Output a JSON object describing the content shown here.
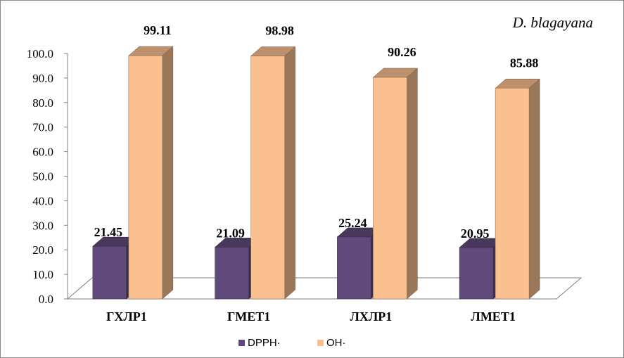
{
  "chart_data": {
    "type": "bar",
    "title": "D. blagayana",
    "categories": [
      "ГХЛР1",
      "ГМЕТ1",
      "ЛХЛР1",
      "ЛМЕТ1"
    ],
    "series": [
      {
        "name": "DPPH·",
        "values": [
          21.45,
          21.09,
          25.24,
          20.95
        ],
        "color": "#604a7b"
      },
      {
        "name": "OH·",
        "values": [
          99.11,
          98.98,
          90.26,
          85.88
        ],
        "color": "#fac090"
      }
    ],
    "ylim": [
      0,
      100
    ],
    "yticks": [
      "0.0",
      "10.0",
      "20.0",
      "30.0",
      "40.0",
      "50.0",
      "60.0",
      "70.0",
      "80.0",
      "90.0",
      "100.0"
    ],
    "grid": false,
    "legend": "bottom"
  }
}
